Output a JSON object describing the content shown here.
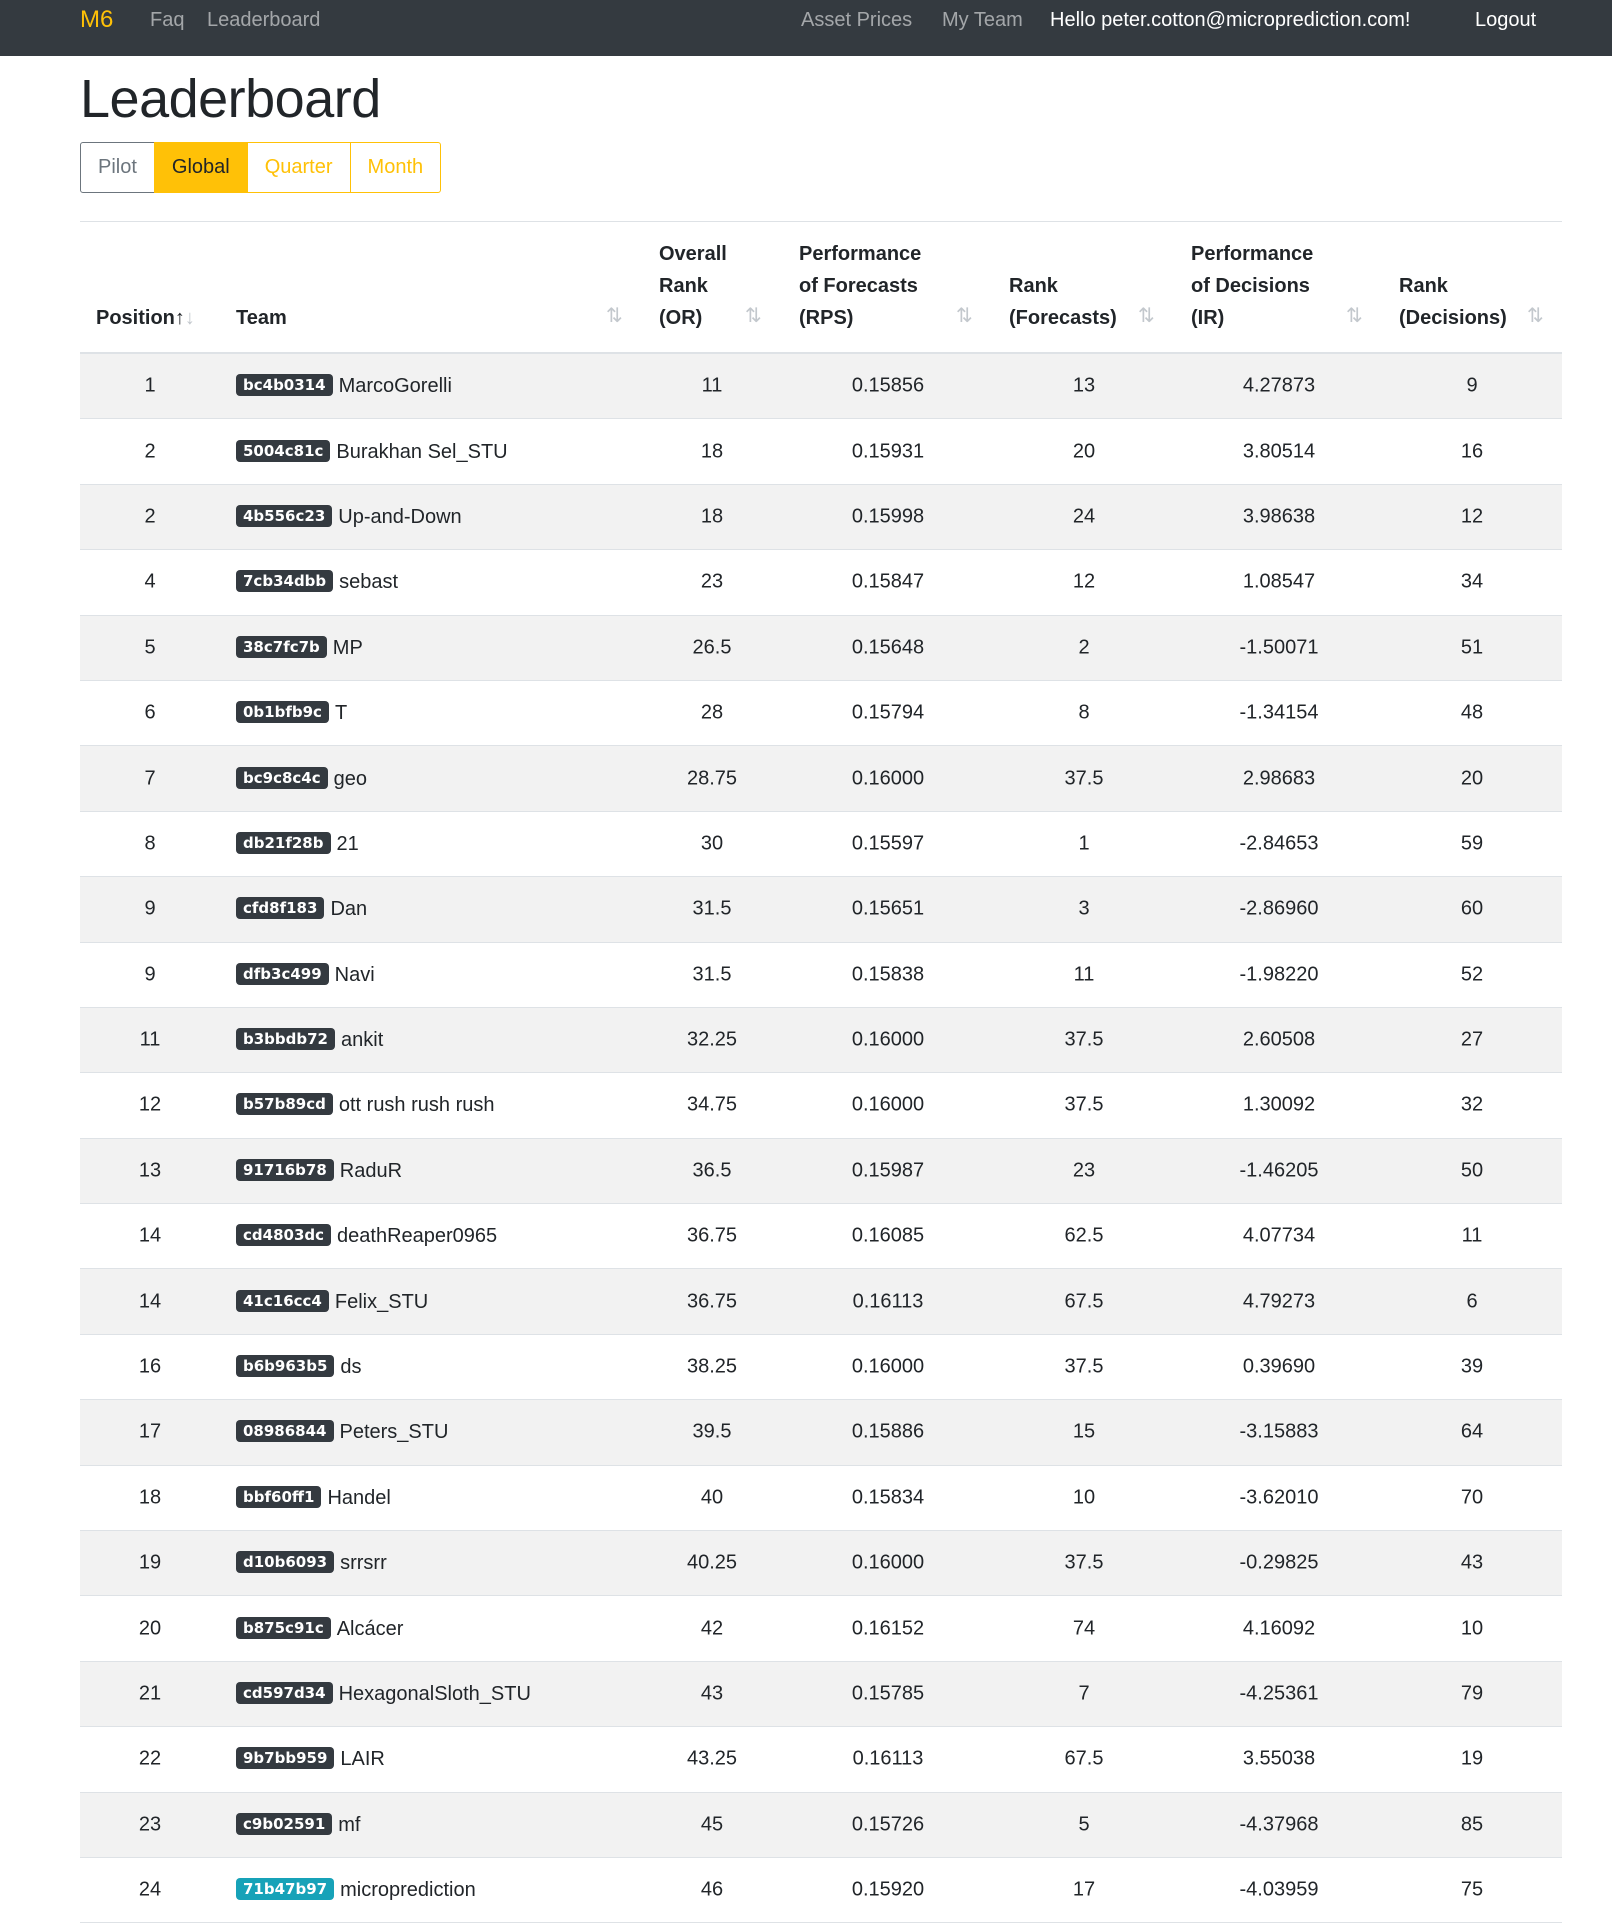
{
  "nav": {
    "brand": "M6",
    "faq": "Faq",
    "leaderboard": "Leaderboard",
    "asset_prices": "Asset Prices",
    "my_team": "My Team",
    "greeting": "Hello peter.cotton@microprediction.com!",
    "logout": "Logout"
  },
  "page_title": "Leaderboard",
  "filters": {
    "pilot": "Pilot",
    "global": "Global",
    "quarter": "Quarter",
    "month": "Month",
    "active": "Global"
  },
  "columns": {
    "position": "Position",
    "team": "Team",
    "overall_rank": [
      "Overall",
      "Rank",
      "(OR)"
    ],
    "perf_forecasts": [
      "Performance",
      "of Forecasts",
      "(RPS)"
    ],
    "rank_forecasts": [
      "Rank",
      "(Forecasts)"
    ],
    "perf_decisions": [
      "Performance",
      "of Decisions",
      "(IR)"
    ],
    "rank_decisions": [
      "Rank",
      "(Decisions)"
    ]
  },
  "accent_colors": {
    "brand": "#ffc107",
    "badge": "#343a40",
    "highlight_badge": "#17a2b8"
  },
  "rows": [
    {
      "position": "1",
      "badge": "bc4b0314",
      "name": "MarcoGorelli",
      "or": "11",
      "rps": "0.15856",
      "rank_f": "13",
      "ir": "4.27873",
      "rank_d": "9"
    },
    {
      "position": "2",
      "badge": "5004c81c",
      "name": "Burakhan Sel_STU",
      "or": "18",
      "rps": "0.15931",
      "rank_f": "20",
      "ir": "3.80514",
      "rank_d": "16"
    },
    {
      "position": "2",
      "badge": "4b556c23",
      "name": "Up-and-Down",
      "or": "18",
      "rps": "0.15998",
      "rank_f": "24",
      "ir": "3.98638",
      "rank_d": "12"
    },
    {
      "position": "4",
      "badge": "7cb34dbb",
      "name": "sebast",
      "or": "23",
      "rps": "0.15847",
      "rank_f": "12",
      "ir": "1.08547",
      "rank_d": "34"
    },
    {
      "position": "5",
      "badge": "38c7fc7b",
      "name": "MP",
      "or": "26.5",
      "rps": "0.15648",
      "rank_f": "2",
      "ir": "-1.50071",
      "rank_d": "51"
    },
    {
      "position": "6",
      "badge": "0b1bfb9c",
      "name": "T",
      "or": "28",
      "rps": "0.15794",
      "rank_f": "8",
      "ir": "-1.34154",
      "rank_d": "48"
    },
    {
      "position": "7",
      "badge": "bc9c8c4c",
      "name": "geo",
      "or": "28.75",
      "rps": "0.16000",
      "rank_f": "37.5",
      "ir": "2.98683",
      "rank_d": "20"
    },
    {
      "position": "8",
      "badge": "db21f28b",
      "name": "21",
      "or": "30",
      "rps": "0.15597",
      "rank_f": "1",
      "ir": "-2.84653",
      "rank_d": "59"
    },
    {
      "position": "9",
      "badge": "cfd8f183",
      "name": "Dan",
      "or": "31.5",
      "rps": "0.15651",
      "rank_f": "3",
      "ir": "-2.86960",
      "rank_d": "60"
    },
    {
      "position": "9",
      "badge": "dfb3c499",
      "name": "Navi",
      "or": "31.5",
      "rps": "0.15838",
      "rank_f": "11",
      "ir": "-1.98220",
      "rank_d": "52"
    },
    {
      "position": "11",
      "badge": "b3bbdb72",
      "name": "ankit",
      "or": "32.25",
      "rps": "0.16000",
      "rank_f": "37.5",
      "ir": "2.60508",
      "rank_d": "27"
    },
    {
      "position": "12",
      "badge": "b57b89cd",
      "name": "ott rush rush rush",
      "or": "34.75",
      "rps": "0.16000",
      "rank_f": "37.5",
      "ir": "1.30092",
      "rank_d": "32"
    },
    {
      "position": "13",
      "badge": "91716b78",
      "name": "RaduR",
      "or": "36.5",
      "rps": "0.15987",
      "rank_f": "23",
      "ir": "-1.46205",
      "rank_d": "50"
    },
    {
      "position": "14",
      "badge": "cd4803dc",
      "name": "deathReaper0965",
      "or": "36.75",
      "rps": "0.16085",
      "rank_f": "62.5",
      "ir": "4.07734",
      "rank_d": "11"
    },
    {
      "position": "14",
      "badge": "41c16cc4",
      "name": "Felix_STU",
      "or": "36.75",
      "rps": "0.16113",
      "rank_f": "67.5",
      "ir": "4.79273",
      "rank_d": "6"
    },
    {
      "position": "16",
      "badge": "b6b963b5",
      "name": "ds",
      "or": "38.25",
      "rps": "0.16000",
      "rank_f": "37.5",
      "ir": "0.39690",
      "rank_d": "39"
    },
    {
      "position": "17",
      "badge": "08986844",
      "name": "Peters_STU",
      "or": "39.5",
      "rps": "0.15886",
      "rank_f": "15",
      "ir": "-3.15883",
      "rank_d": "64"
    },
    {
      "position": "18",
      "badge": "bbf60ff1",
      "name": "Handel",
      "or": "40",
      "rps": "0.15834",
      "rank_f": "10",
      "ir": "-3.62010",
      "rank_d": "70"
    },
    {
      "position": "19",
      "badge": "d10b6093",
      "name": "srrsrr",
      "or": "40.25",
      "rps": "0.16000",
      "rank_f": "37.5",
      "ir": "-0.29825",
      "rank_d": "43"
    },
    {
      "position": "20",
      "badge": "b875c91c",
      "name": "Alcácer",
      "or": "42",
      "rps": "0.16152",
      "rank_f": "74",
      "ir": "4.16092",
      "rank_d": "10"
    },
    {
      "position": "21",
      "badge": "cd597d34",
      "name": "HexagonalSloth_STU",
      "or": "43",
      "rps": "0.15785",
      "rank_f": "7",
      "ir": "-4.25361",
      "rank_d": "79"
    },
    {
      "position": "22",
      "badge": "9b7bb959",
      "name": "LAIR",
      "or": "43.25",
      "rps": "0.16113",
      "rank_f": "67.5",
      "ir": "3.55038",
      "rank_d": "19"
    },
    {
      "position": "23",
      "badge": "c9b02591",
      "name": "mf",
      "or": "45",
      "rps": "0.15726",
      "rank_f": "5",
      "ir": "-4.37968",
      "rank_d": "85"
    },
    {
      "position": "24",
      "badge": "71b47b97",
      "name": "microprediction",
      "or": "46",
      "rps": "0.15920",
      "rank_f": "17",
      "ir": "-4.03959",
      "rank_d": "75",
      "highlight": true
    }
  ]
}
